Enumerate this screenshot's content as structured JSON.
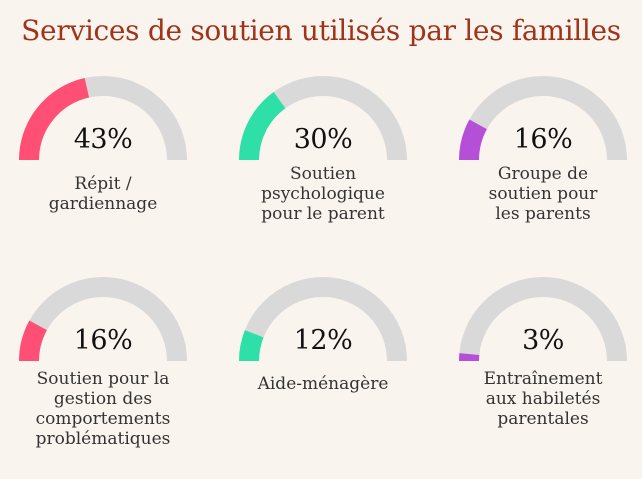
{
  "chart_data": {
    "type": "gauge",
    "title": "Services de soutien utilisés par les familles",
    "unit": "%",
    "range": [
      0,
      100
    ],
    "track_color": "#d9d9d9",
    "items": [
      {
        "label_lines": [
          "Répit /",
          "gardiennage"
        ],
        "value": 43,
        "display": "43%",
        "color": "#ff4f74"
      },
      {
        "label_lines": [
          "Soutien",
          "psychologique",
          "pour le parent"
        ],
        "value": 30,
        "display": "30%",
        "color": "#2ee0a8"
      },
      {
        "label_lines": [
          "Groupe de",
          "soutien pour",
          "les parents"
        ],
        "value": 16,
        "display": "16%",
        "color": "#b54fd8"
      },
      {
        "label_lines": [
          "Soutien pour la",
          "gestion des",
          "comportements",
          "problématiques"
        ],
        "value": 16,
        "display": "16%",
        "color": "#ff4f74"
      },
      {
        "label_lines": [
          "Aide-ménagère"
        ],
        "value": 12,
        "display": "12%",
        "color": "#2ee0a8"
      },
      {
        "label_lines": [
          "Entraînement",
          "aux habiletés",
          "parentales"
        ],
        "value": 3,
        "display": "3%",
        "color": "#b54fd8"
      }
    ]
  }
}
